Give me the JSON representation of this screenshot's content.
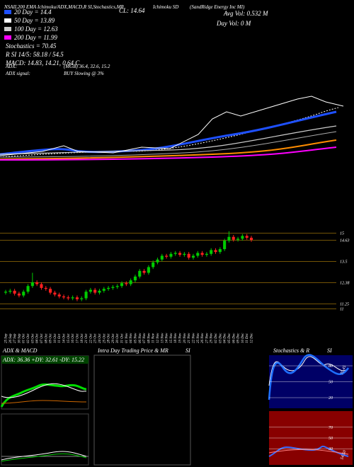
{
  "header": {
    "title_line": "NSAIL200 EMA Ichimoku/ADX,MACD,R  SI,Stochastics,MR",
    "close_label": "CL: 14.64",
    "ichimoku": "Ichimoku SD",
    "company": "(SandRidge Energy Inc MI)",
    "legend": [
      "20 Day = 14.4",
      "50 Day = 13.89",
      "100 Day = 12.63",
      "200 Day = 11.99",
      "Stochastics = 70.45",
      "R          SI 14/5: 58.18 / 54.5",
      "MACD: 14.83, 14.21, 0.64  C"
    ],
    "adx_line": "ADX:",
    "adx_values": "(MGB) 36.4, 32.6, 15.2",
    "signal_line": "ADX  signal:",
    "signal_value": "BUY Slowing @ 3%",
    "avg_vol": "Avg Vol: 0.532  M",
    "day_vol": "Day Vol: 0   M"
  },
  "chart_data": {
    "type": "candlestick",
    "dates": [
      "25 Sep",
      "26 Sep",
      "27 Sep",
      "30 Sep",
      "01 Oct",
      "02 Oct",
      "03 Oct",
      "04 Oct",
      "07 Oct",
      "08 Oct",
      "09 Oct",
      "10 Oct",
      "11 Oct",
      "14 Oct",
      "15 Oct",
      "16 Oct",
      "17 Oct",
      "18 Oct",
      "21 Oct",
      "22 Oct",
      "23 Oct",
      "24 Oct",
      "25 Oct",
      "28 Oct",
      "29 Oct",
      "30 Oct",
      "31 Oct",
      "01 Nov",
      "04 Nov",
      "05 Nov",
      "06 Nov",
      "07 Nov",
      "08 Nov",
      "11 Nov",
      "12 Nov",
      "13 Nov",
      "14 Nov",
      "15 Nov",
      "18 Nov",
      "19 Nov",
      "20 Nov",
      "21 Nov",
      "22 Nov",
      "25 Nov",
      "26 Nov",
      "27 Nov",
      "29 Nov",
      "02 Dec",
      "03 Dec",
      "04 Dec",
      "05 Dec",
      "06 Dec",
      "09 Dec",
      "10 Dec",
      "11 Dec",
      "12 Dec"
    ],
    "open": [
      11.85,
      11.9,
      11.95,
      11.8,
      11.7,
      11.9,
      12.2,
      12.4,
      12.3,
      12.1,
      12.05,
      11.85,
      11.75,
      11.65,
      11.6,
      11.55,
      11.6,
      11.5,
      11.55,
      11.9,
      12.0,
      11.85,
      11.95,
      12.05,
      12.1,
      12.15,
      12.2,
      12.35,
      12.3,
      12.5,
      12.7,
      13.0,
      12.9,
      13.2,
      13.45,
      13.6,
      13.8,
      13.75,
      13.9,
      13.95,
      13.85,
      13.9,
      13.7,
      13.8,
      13.95,
      13.85,
      13.9,
      14.1,
      14.0,
      14.15,
      14.6,
      14.8,
      14.65,
      14.7,
      14.85,
      14.75
    ],
    "high": [
      12.0,
      12.05,
      12.05,
      11.9,
      12.0,
      12.3,
      12.9,
      12.5,
      12.4,
      12.2,
      12.15,
      11.95,
      11.85,
      11.75,
      11.7,
      11.7,
      11.7,
      11.65,
      12.0,
      12.1,
      12.1,
      12.05,
      12.15,
      12.2,
      12.25,
      12.3,
      12.45,
      12.45,
      12.6,
      12.8,
      13.1,
      13.1,
      13.3,
      13.55,
      13.7,
      13.9,
      13.9,
      14.0,
      14.05,
      14.05,
      14.0,
      14.0,
      13.9,
      14.05,
      14.05,
      14.0,
      14.2,
      14.2,
      14.25,
      14.7,
      15.1,
      14.9,
      14.8,
      14.95,
      14.95,
      14.85
    ],
    "low": [
      11.75,
      11.8,
      11.7,
      11.6,
      11.6,
      11.8,
      12.1,
      12.2,
      12.0,
      11.95,
      11.75,
      11.65,
      11.55,
      11.5,
      11.45,
      11.45,
      11.4,
      11.4,
      11.45,
      11.8,
      11.75,
      11.75,
      11.85,
      11.95,
      12.0,
      12.05,
      12.1,
      12.2,
      12.2,
      12.4,
      12.6,
      12.8,
      12.8,
      13.1,
      13.35,
      13.5,
      13.65,
      13.65,
      13.8,
      13.75,
      13.75,
      13.6,
      13.6,
      13.7,
      13.75,
      13.75,
      13.8,
      13.9,
      13.9,
      14.05,
      14.5,
      14.55,
      14.55,
      14.6,
      14.65,
      14.54
    ],
    "close": [
      11.9,
      11.95,
      11.8,
      11.7,
      11.9,
      12.2,
      12.4,
      12.3,
      12.1,
      12.05,
      11.85,
      11.75,
      11.65,
      11.6,
      11.55,
      11.6,
      11.5,
      11.55,
      11.9,
      12.0,
      11.85,
      11.95,
      12.05,
      12.1,
      12.15,
      12.2,
      12.35,
      12.3,
      12.5,
      12.7,
      13.0,
      12.9,
      13.2,
      13.45,
      13.6,
      13.8,
      13.75,
      13.9,
      13.95,
      13.85,
      13.9,
      13.7,
      13.8,
      13.95,
      13.85,
      13.9,
      14.1,
      14.0,
      14.15,
      14.6,
      14.8,
      14.65,
      14.7,
      14.85,
      14.75,
      14.64
    ],
    "up_color": "#00cc00",
    "down_color": "#ff2020",
    "ylim": [
      10.3,
      16.1
    ],
    "yticks": [
      15,
      14.63,
      13.5,
      12.38,
      11.25,
      11
    ]
  },
  "panels": {
    "adx_title": "ADX  & MACD",
    "adx_values": "ADX: 36.36  +DY: 32.61  -DY: 15.22",
    "intraday_title": "Intra  Day Trading Price  & MR",
    "intraday_si": "SI",
    "stoch_title": "Stochastics & R",
    "stoch_si": "SI",
    "stoch_ticks": [
      80,
      50,
      20
    ],
    "rsi_ticks": [
      70,
      50,
      30
    ],
    "stoch_value": "70.45",
    "rsi_value": "54.50"
  }
}
